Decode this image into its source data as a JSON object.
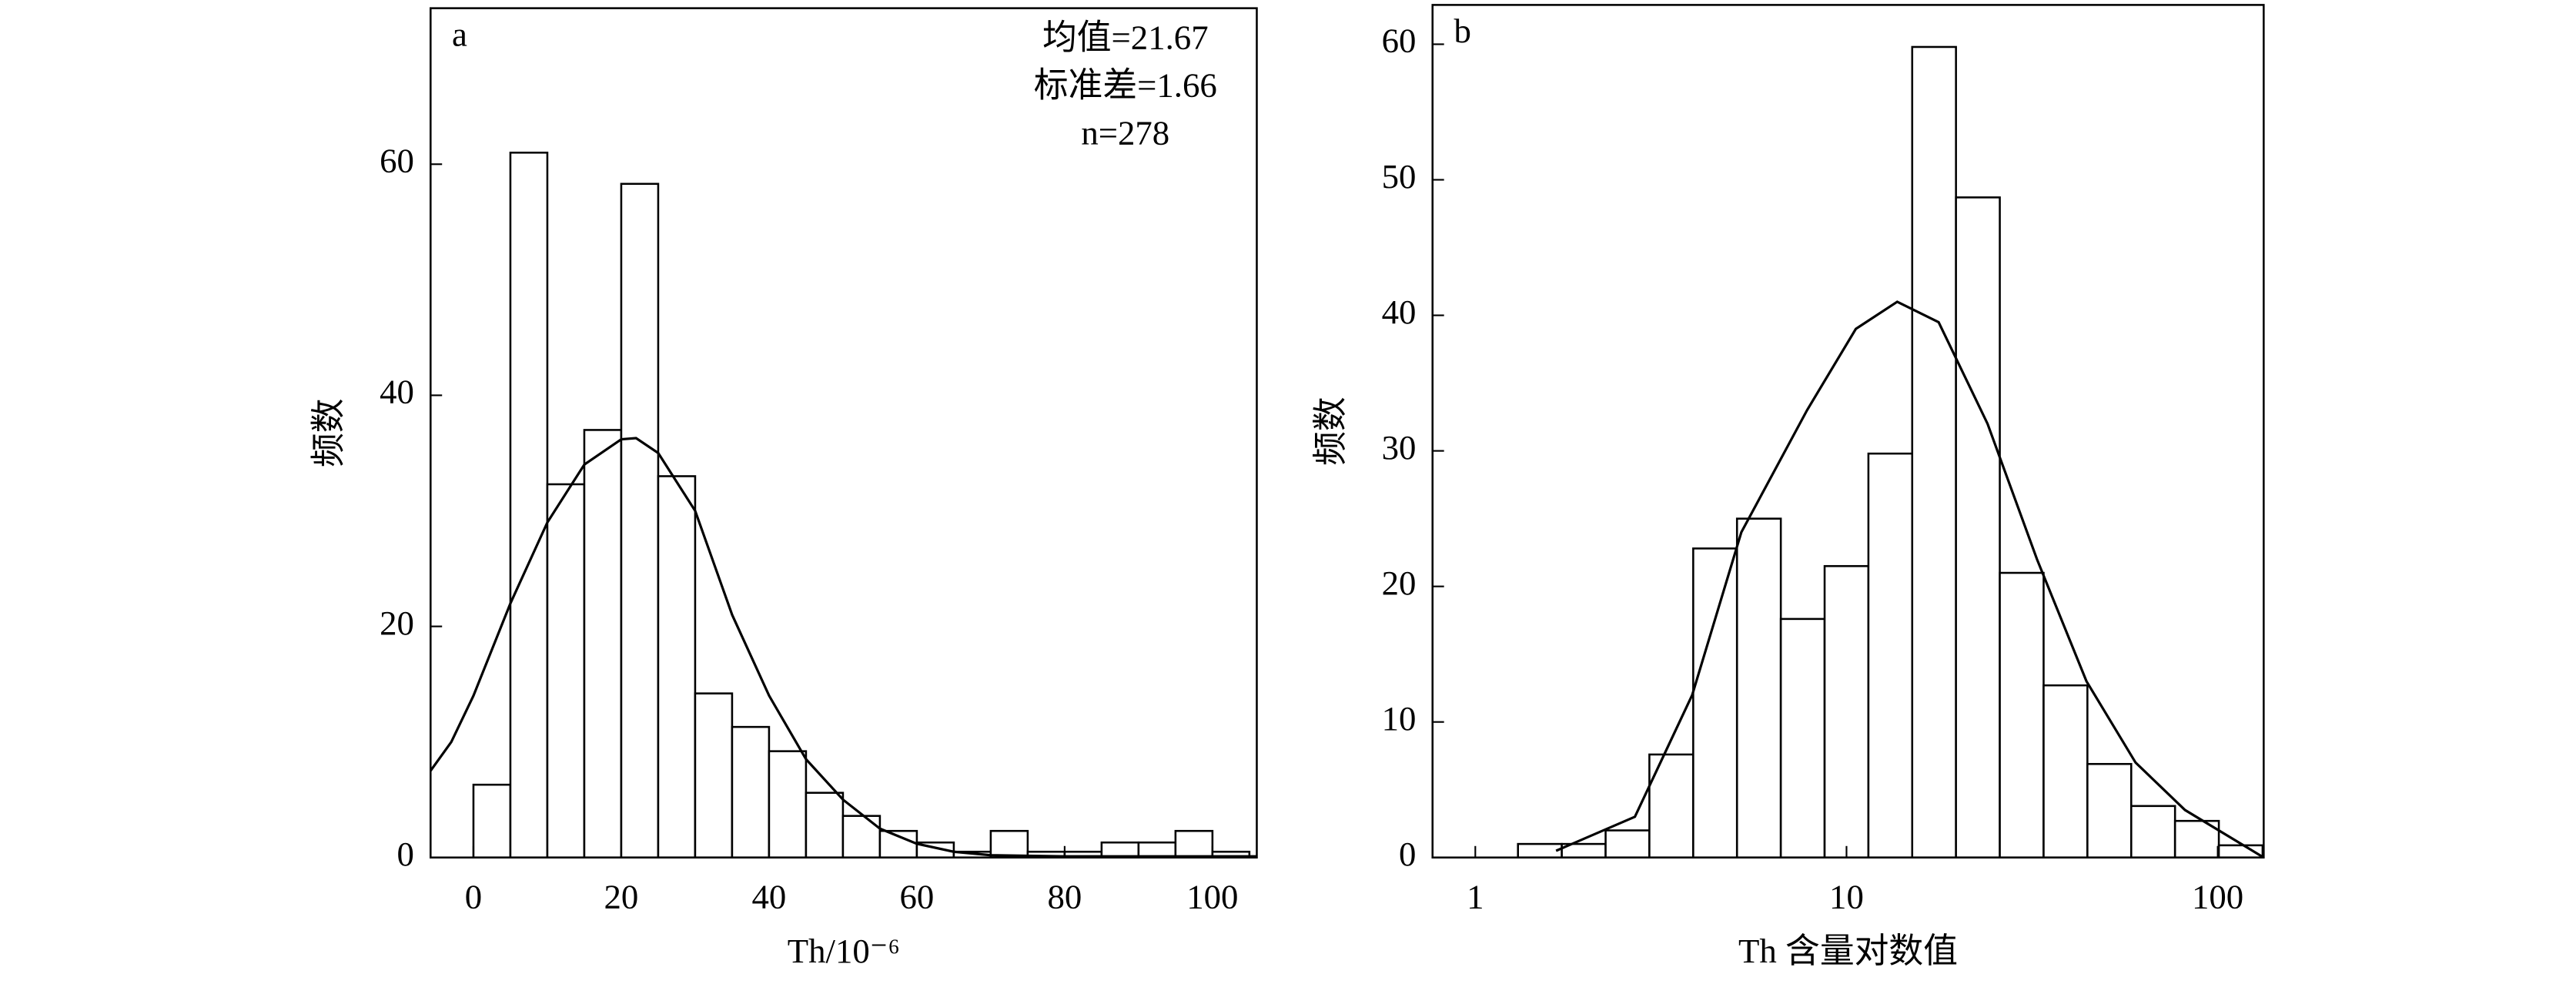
{
  "chart_data": [
    {
      "type": "histogram",
      "panel_label": "a",
      "annotations": [
        "均值=21.67",
        "标准差=1.66",
        "n=278"
      ],
      "xlabel": "Th/10⁻⁶",
      "ylabel": "频数",
      "bins": [
        0,
        5,
        10,
        15,
        20,
        25,
        30,
        35,
        40,
        45,
        50,
        55,
        60,
        65,
        70,
        75,
        80,
        85,
        90,
        95,
        100,
        105
      ],
      "counts": [
        6.3,
        61,
        32.3,
        37,
        58.3,
        33,
        14.2,
        11.3,
        9.2,
        5.6,
        3.6,
        2.3,
        1.3,
        0.5,
        2.3,
        0.5,
        0.5,
        1.3,
        1.3,
        2.3,
        0.5
      ],
      "curve": {
        "x": [
          -5.8,
          -3,
          0,
          5,
          10,
          15,
          20,
          22,
          25,
          30,
          35,
          40,
          45,
          50,
          55,
          60,
          65,
          70,
          80,
          106
        ],
        "y": [
          7.5,
          10,
          14,
          22,
          29,
          34,
          36.2,
          36.3,
          35,
          30,
          21,
          14,
          8.5,
          5,
          2.5,
          1.2,
          0.5,
          0.2,
          0.1,
          0.1
        ]
      },
      "xlim": [
        -5.8,
        106
      ],
      "ylim": [
        0,
        73.5
      ],
      "xticks": [
        0,
        20,
        40,
        60,
        80,
        100
      ],
      "yticks": [
        0,
        20,
        40,
        60
      ]
    },
    {
      "type": "histogram",
      "panel_label": "b",
      "xlabel": "Th 含量对数值",
      "ylabel": "频数",
      "xscale": "log",
      "bins": [
        1.303,
        1.71,
        2.244,
        2.944,
        3.864,
        5.07,
        6.653,
        8.73,
        11.455,
        15.03,
        19.72,
        25.88,
        33.96,
        44.56,
        58.48,
        76.74,
        100.7,
        132.1
      ],
      "counts": [
        1,
        1,
        2,
        7.6,
        22.8,
        25,
        17.6,
        21.5,
        29.8,
        59.8,
        48.7,
        21,
        12.7,
        6.9,
        3.8,
        2.7,
        0.9
      ],
      "curve": {
        "x": [
          1.65,
          2.69,
          3.84,
          5.21,
          7.83,
          10.6,
          13.7,
          17.7,
          24,
          32.6,
          44.3,
          60.1,
          81.6,
          133
        ],
        "y": [
          0.5,
          3,
          12,
          24,
          33,
          39,
          41,
          39.5,
          32,
          22,
          13,
          7,
          3.5,
          0
        ]
      },
      "xlim": [
        0.767,
        133
      ],
      "ylim": [
        0,
        62.9
      ],
      "xticks": [
        1,
        10,
        100
      ],
      "yticks": [
        0,
        10,
        20,
        30,
        40,
        50,
        60
      ]
    }
  ]
}
